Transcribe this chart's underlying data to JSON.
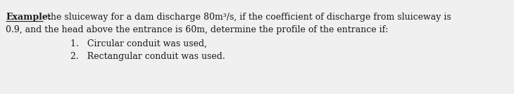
{
  "background_color": "#f0f0f0",
  "label_bold": "Example:",
  "line1_rest": " the sluiceway for a dam discharge 80m³/s, if the coefficient of discharge from sluiceway is",
  "line2": "0.9, and the head above the entrance is 60m, determine the profile of the entrance if:",
  "item1": "1.   Circular conduit was used,",
  "item2": "2.   Rectangular conduit was used.",
  "font_size": 9.0,
  "font_family": "DejaVu Serif",
  "text_color": "#1a1a1a",
  "fig_width": 7.3,
  "fig_height": 1.34,
  "dpi": 100
}
